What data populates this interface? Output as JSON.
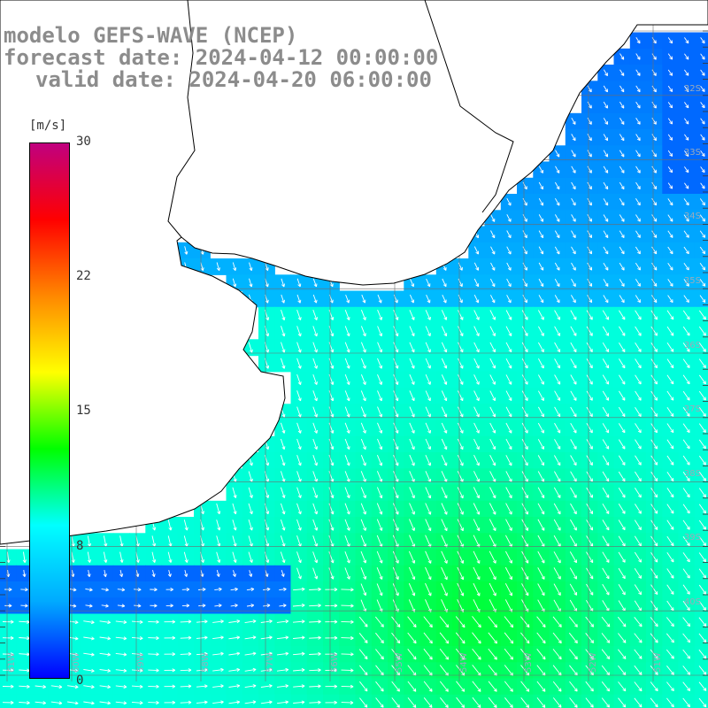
{
  "titles": {
    "line1": "modelo GEFS-WAVE (NCEP)",
    "line2": "forecast date: 2024-04-12 00:00:00",
    "line3": "valid date: 2024-04-20 06:00:00"
  },
  "colorbar": {
    "unit": "[m/s]",
    "ticks": [
      "30",
      "22",
      "15",
      "8",
      "0"
    ],
    "colors": [
      "#0000ff",
      "#00aaff",
      "#00ffff",
      "#00ff00",
      "#ffff00",
      "#ff8800",
      "#ff0000",
      "#c0007f"
    ]
  },
  "lat_labels": [
    "32S",
    "33S",
    "34S",
    "35S",
    "36S",
    "37S",
    "38S",
    "39S",
    "40S"
  ],
  "lon_labels": [
    "61W",
    "60W",
    "59W",
    "58W",
    "57W",
    "56W",
    "55W",
    "54W",
    "53W",
    "52W",
    "51W"
  ],
  "colors": {
    "land": "#ffffff",
    "grid": "#6e6e6e",
    "coast": "#000000",
    "title": "#8c8c8c",
    "arrow": "#ffffff"
  }
}
